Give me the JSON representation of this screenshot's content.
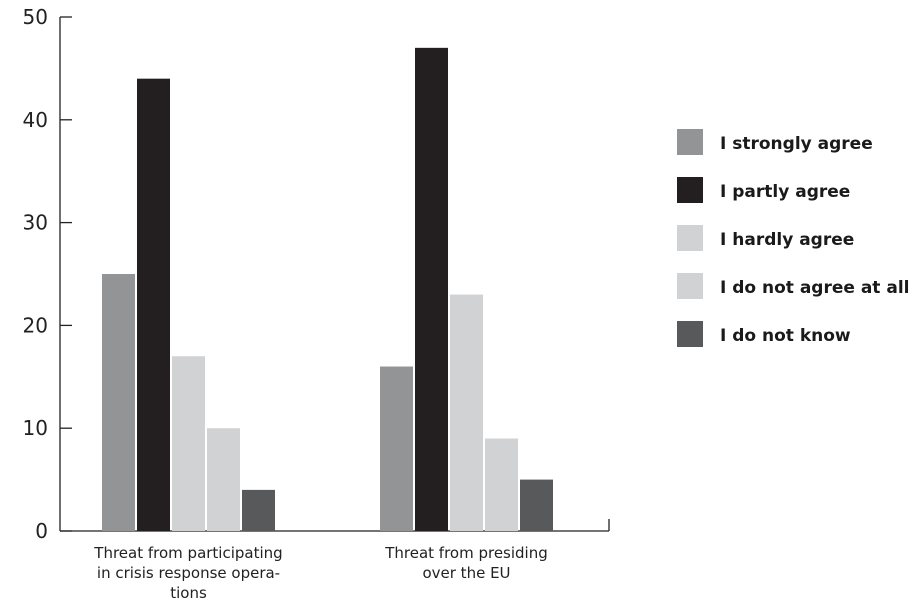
{
  "chart_data": {
    "type": "bar",
    "title": "",
    "xlabel": "",
    "ylabel": "",
    "ylim": [
      0,
      50
    ],
    "yticks": [
      0,
      10,
      20,
      30,
      40,
      50
    ],
    "grid": false,
    "legend_position": "right",
    "categories": [
      [
        "Threat from participating",
        "in crisis response opera-",
        "tions"
      ],
      [
        "Threat from presiding",
        "over the EU"
      ]
    ],
    "series": [
      {
        "name": "I strongly agree",
        "color": "#939496",
        "values": [
          25,
          16
        ]
      },
      {
        "name": "I partly agree",
        "color": "#231f20",
        "values": [
          44,
          47
        ]
      },
      {
        "name": "I hardly agree",
        "color": "#d1d2d4",
        "values": [
          17,
          23
        ]
      },
      {
        "name": "I do not agree at all",
        "color": "#d1d2d4",
        "values": [
          10,
          9
        ]
      },
      {
        "name": "I do not know",
        "color": "#58595b",
        "values": [
          4,
          5
        ]
      }
    ]
  }
}
